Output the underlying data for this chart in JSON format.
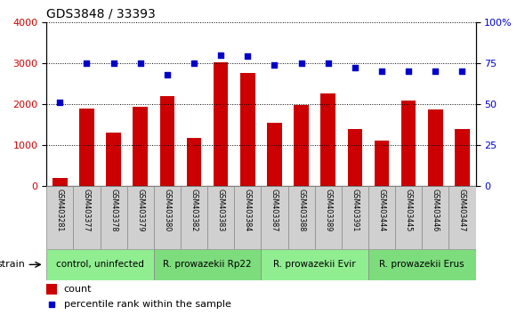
{
  "title": "GDS3848 / 33393",
  "samples": [
    "GSM403281",
    "GSM403377",
    "GSM403378",
    "GSM403379",
    "GSM403380",
    "GSM403382",
    "GSM403383",
    "GSM403384",
    "GSM403387",
    "GSM403388",
    "GSM403389",
    "GSM403391",
    "GSM403444",
    "GSM403445",
    "GSM403446",
    "GSM403447"
  ],
  "counts": [
    200,
    1880,
    1310,
    1930,
    2200,
    1175,
    3020,
    2760,
    1550,
    1975,
    2260,
    1380,
    1100,
    2080,
    1870,
    1380
  ],
  "percentiles": [
    51,
    75,
    75,
    75,
    68,
    75,
    80,
    79,
    74,
    75,
    75,
    72,
    70,
    70,
    70,
    70
  ],
  "bar_color": "#cc0000",
  "dot_color": "#0000cc",
  "ylim_left": [
    0,
    4000
  ],
  "ylim_right": [
    0,
    100
  ],
  "yticks_left": [
    0,
    1000,
    2000,
    3000,
    4000
  ],
  "yticks_right": [
    0,
    25,
    50,
    75,
    100
  ],
  "groups": [
    {
      "label": "control, uninfected",
      "start": 0,
      "end": 4,
      "color": "#90ee90"
    },
    {
      "label": "R. prowazekii Rp22",
      "start": 4,
      "end": 8,
      "color": "#7ddd7d"
    },
    {
      "label": "R. prowazekii Evir",
      "start": 8,
      "end": 12,
      "color": "#90ee90"
    },
    {
      "label": "R. prowazekii Erus",
      "start": 12,
      "end": 16,
      "color": "#7ddd7d"
    }
  ],
  "legend_items": [
    {
      "label": "count",
      "color": "#cc0000"
    },
    {
      "label": "percentile rank within the sample",
      "color": "#0000cc"
    }
  ],
  "tick_label_color_left": "#cc0000",
  "tick_label_color_right": "#0000cc",
  "grid_color": "black",
  "cell_gray": "#d0d0d0",
  "cell_border": "#888888"
}
